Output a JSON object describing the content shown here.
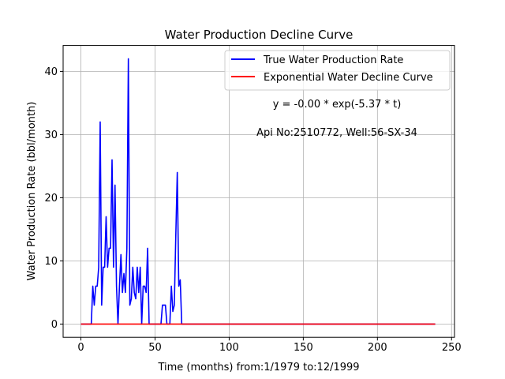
{
  "chart_data": {
    "type": "line",
    "title": "Water Production Decline Curve",
    "xlabel": "Time (months) from:1/1979 to:12/1999",
    "ylabel": "Water Production Rate (bbl/month)",
    "xlim": [
      -12,
      252
    ],
    "ylim": [
      -2.1,
      44.1
    ],
    "xticks": [
      0,
      50,
      100,
      150,
      200,
      250
    ],
    "yticks": [
      0,
      10,
      20,
      30,
      40
    ],
    "grid": true,
    "legend_position": "top-right",
    "annotations": [
      "y = -0.00 * exp(-5.37 * t)",
      "Api No:2510772, Well:56-SX-34"
    ],
    "series": [
      {
        "name": "True Water Production Rate",
        "color": "#0000ff",
        "points": [
          [
            0,
            0
          ],
          [
            7,
            0
          ],
          [
            8,
            6
          ],
          [
            9,
            3
          ],
          [
            10,
            6
          ],
          [
            11,
            6
          ],
          [
            12,
            9
          ],
          [
            13,
            32
          ],
          [
            14,
            3
          ],
          [
            15,
            9
          ],
          [
            16,
            9
          ],
          [
            17,
            17
          ],
          [
            18,
            9
          ],
          [
            19,
            12
          ],
          [
            20,
            12
          ],
          [
            21,
            26
          ],
          [
            22,
            9
          ],
          [
            23,
            22
          ],
          [
            24,
            6
          ],
          [
            25,
            0
          ],
          [
            26,
            6
          ],
          [
            27,
            11
          ],
          [
            28,
            5
          ],
          [
            29,
            8
          ],
          [
            30,
            5
          ],
          [
            31,
            12
          ],
          [
            32,
            42
          ],
          [
            33,
            3
          ],
          [
            34,
            4
          ],
          [
            35,
            9
          ],
          [
            36,
            5
          ],
          [
            37,
            4
          ],
          [
            38,
            9
          ],
          [
            39,
            5
          ],
          [
            40,
            9
          ],
          [
            41,
            0
          ],
          [
            42,
            6
          ],
          [
            43,
            6
          ],
          [
            44,
            5
          ],
          [
            45,
            12
          ],
          [
            46,
            0
          ],
          [
            54,
            0
          ],
          [
            55,
            3
          ],
          [
            56,
            3
          ],
          [
            57,
            3
          ],
          [
            58,
            0
          ],
          [
            60,
            0
          ],
          [
            61,
            6
          ],
          [
            62,
            2
          ],
          [
            63,
            3
          ],
          [
            64,
            14
          ],
          [
            65,
            24
          ],
          [
            66,
            6
          ],
          [
            67,
            7
          ],
          [
            68,
            0
          ],
          [
            239,
            0
          ]
        ]
      },
      {
        "name": "Exponential Water Decline Curve",
        "color": "#ff0000",
        "points": [
          [
            0,
            0
          ],
          [
            239,
            0
          ]
        ]
      }
    ]
  }
}
